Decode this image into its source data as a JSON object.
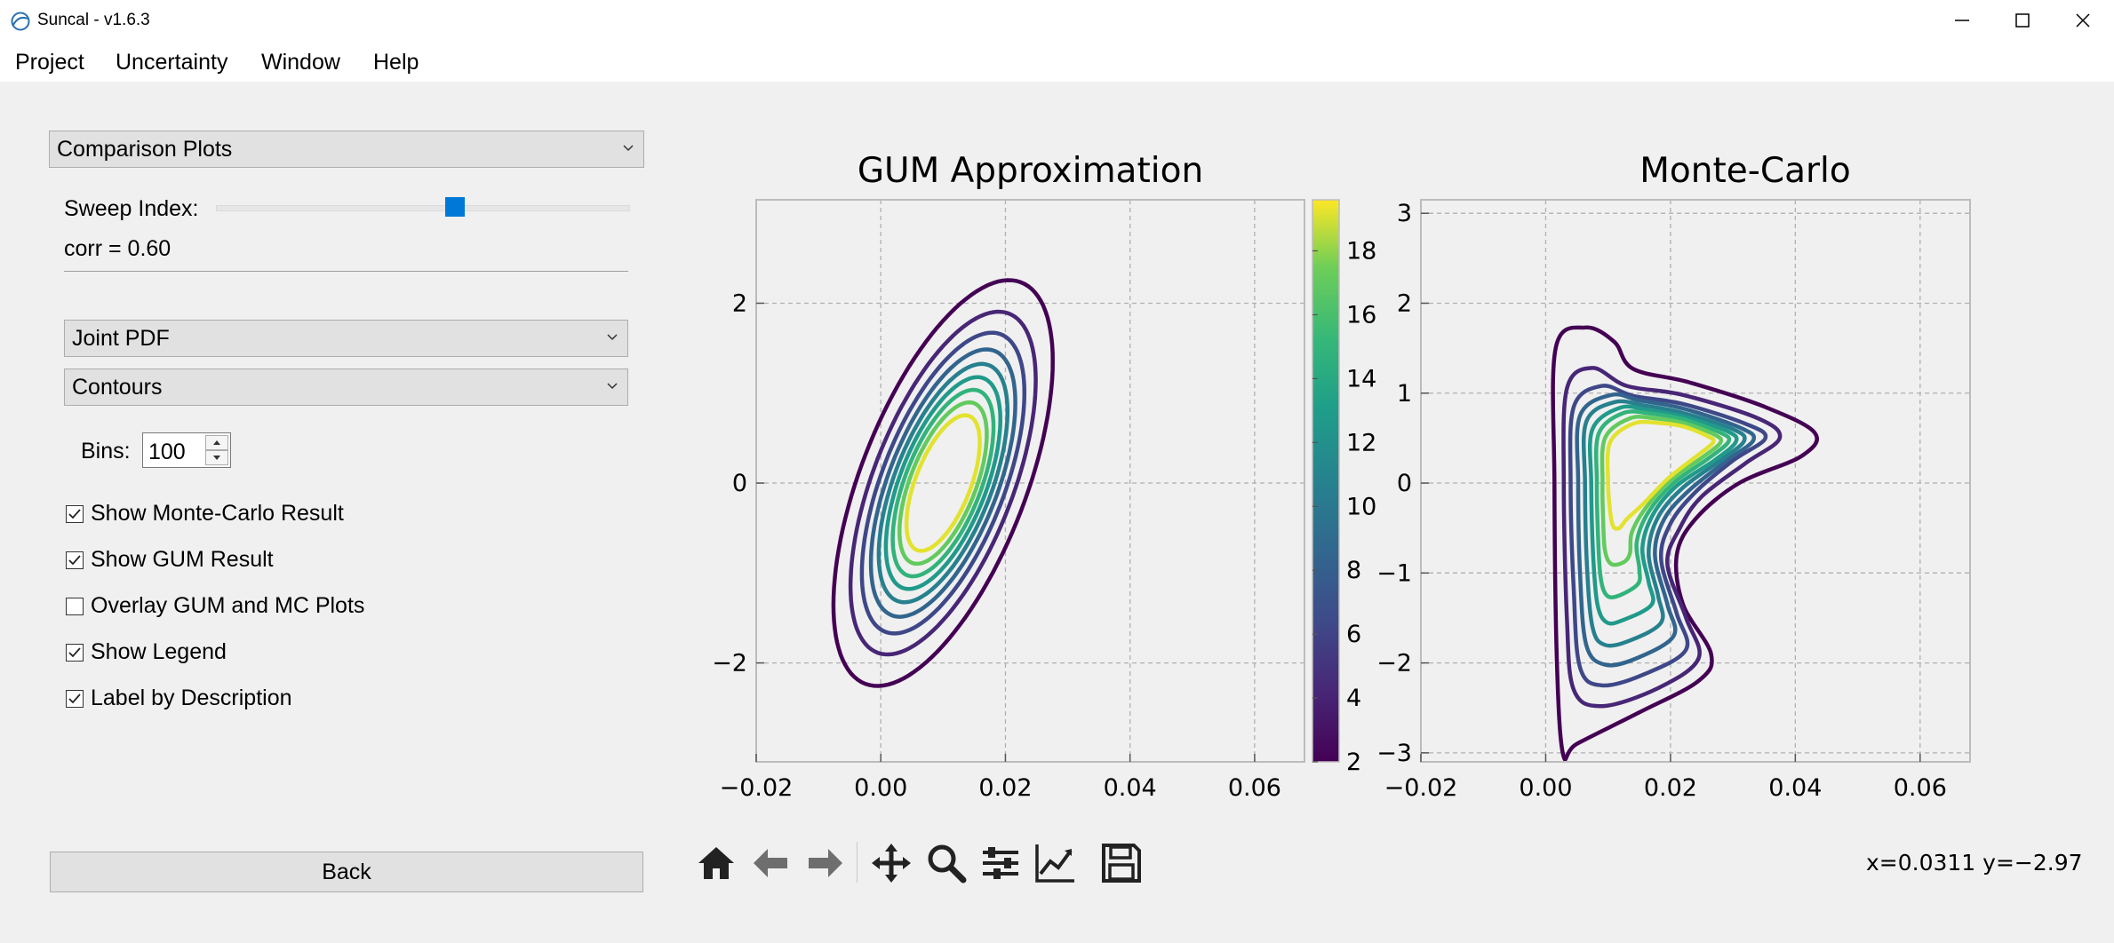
{
  "window": {
    "title": "Suncal - v1.6.3"
  },
  "menu": [
    "Project",
    "Uncertainty",
    "Window",
    "Help"
  ],
  "left_panel": {
    "view_select": "Comparison Plots",
    "sweep_label": "Sweep Index:",
    "sweep_fraction": 0.58,
    "corr_text": "corr = 0.60",
    "plot_type_select": "Joint PDF",
    "style_select": "Contours",
    "bins_label": "Bins:",
    "bins_value": "100",
    "checkboxes": [
      {
        "label": "Show Monte-Carlo Result",
        "checked": true
      },
      {
        "label": "Show GUM Result",
        "checked": true
      },
      {
        "label": "Overlay GUM and MC Plots",
        "checked": false
      },
      {
        "label": "Show Legend",
        "checked": true
      },
      {
        "label": "Label by Description",
        "checked": true
      }
    ],
    "back_label": "Back"
  },
  "chart_data": [
    {
      "type": "contour",
      "title": "GUM Approximation",
      "xlim": [
        -0.02,
        0.068
      ],
      "ylim": [
        -3.1,
        3.15
      ],
      "x_ticks": [
        "−0.02",
        "0.00",
        "0.02",
        "0.04",
        "0.06"
      ],
      "y_ticks": [
        "−2",
        "0",
        "2"
      ],
      "grid": true,
      "ellipse": {
        "center": [
          0.01,
          0.0
        ],
        "sigma_x": 0.0078,
        "sigma_y": 1.0,
        "corr": 0.6
      },
      "levels": [
        2.0,
        4.15,
        6.3,
        8.45,
        10.6,
        12.75,
        14.9,
        17.05,
        19.2
      ],
      "colorbar": {
        "min": 2,
        "max": 19.6,
        "ticks": [
          "2",
          "4",
          "6",
          "8",
          "10",
          "12",
          "14",
          "16",
          "18"
        ]
      }
    },
    {
      "type": "contour",
      "title": "Monte-Carlo",
      "xlim": [
        -0.02,
        0.068
      ],
      "ylim": [
        -3.1,
        3.15
      ],
      "x_ticks": [
        "−0.02",
        "0.00",
        "0.02",
        "0.04",
        "0.06"
      ],
      "y_ticks": [
        "−3",
        "−2",
        "−1",
        "0",
        "1",
        "2",
        "3"
      ],
      "grid": true,
      "contours": [
        {
          "level": 2.0,
          "points": [
            [
              0.0016,
              1.5
            ],
            [
              0.0064,
              1.73
            ],
            [
              0.011,
              1.57
            ],
            [
              0.014,
              1.27
            ],
            [
              0.023,
              1.12
            ],
            [
              0.035,
              0.85
            ],
            [
              0.0431,
              0.56
            ],
            [
              0.041,
              0.3
            ],
            [
              0.031,
              0.0
            ],
            [
              0.024,
              -0.4
            ],
            [
              0.021,
              -0.8
            ],
            [
              0.022,
              -1.35
            ],
            [
              0.0265,
              -1.9
            ],
            [
              0.0245,
              -2.2
            ],
            [
              0.015,
              -2.55
            ],
            [
              0.005,
              -2.9
            ],
            [
              0.0028,
              -3.02
            ],
            [
              0.0018,
              -2.0
            ],
            [
              0.0014,
              0.0
            ]
          ]
        },
        {
          "level": 4.15,
          "points": [
            [
              0.0034,
              1.05
            ],
            [
              0.0075,
              1.28
            ],
            [
              0.013,
              1.08
            ],
            [
              0.022,
              0.98
            ],
            [
              0.034,
              0.72
            ],
            [
              0.0375,
              0.5
            ],
            [
              0.032,
              0.22
            ],
            [
              0.025,
              -0.15
            ],
            [
              0.0215,
              -0.5
            ],
            [
              0.0195,
              -0.9
            ],
            [
              0.0225,
              -1.5
            ],
            [
              0.0245,
              -1.95
            ],
            [
              0.018,
              -2.28
            ],
            [
              0.009,
              -2.48
            ],
            [
              0.0045,
              -2.3
            ],
            [
              0.0034,
              -1.5
            ],
            [
              0.0029,
              0.0
            ]
          ]
        },
        {
          "level": 6.3,
          "points": [
            [
              0.0045,
              0.85
            ],
            [
              0.009,
              1.08
            ],
            [
              0.014,
              0.97
            ],
            [
              0.022,
              0.88
            ],
            [
              0.032,
              0.66
            ],
            [
              0.0352,
              0.5
            ],
            [
              0.03,
              0.25
            ],
            [
              0.024,
              -0.1
            ],
            [
              0.02,
              -0.45
            ],
            [
              0.0185,
              -0.85
            ],
            [
              0.021,
              -1.45
            ],
            [
              0.0225,
              -1.85
            ],
            [
              0.016,
              -2.12
            ],
            [
              0.009,
              -2.25
            ],
            [
              0.0055,
              -2.05
            ],
            [
              0.0045,
              -1.2
            ],
            [
              0.004,
              0.0
            ]
          ]
        },
        {
          "level": 8.45,
          "points": [
            [
              0.0055,
              0.75
            ],
            [
              0.0105,
              0.98
            ],
            [
              0.015,
              0.92
            ],
            [
              0.022,
              0.83
            ],
            [
              0.031,
              0.62
            ],
            [
              0.0333,
              0.48
            ],
            [
              0.029,
              0.25
            ],
            [
              0.023,
              -0.08
            ],
            [
              0.019,
              -0.4
            ],
            [
              0.0175,
              -0.8
            ],
            [
              0.0195,
              -1.35
            ],
            [
              0.0205,
              -1.7
            ],
            [
              0.0145,
              -1.95
            ],
            [
              0.0095,
              -2.02
            ],
            [
              0.0065,
              -1.8
            ],
            [
              0.0055,
              -1.0
            ],
            [
              0.0052,
              0.0
            ]
          ]
        },
        {
          "level": 10.6,
          "points": [
            [
              0.0065,
              0.68
            ],
            [
              0.011,
              0.9
            ],
            [
              0.016,
              0.86
            ],
            [
              0.022,
              0.78
            ],
            [
              0.03,
              0.6
            ],
            [
              0.0318,
              0.47
            ],
            [
              0.028,
              0.25
            ],
            [
              0.022,
              -0.05
            ],
            [
              0.018,
              -0.38
            ],
            [
              0.0165,
              -0.78
            ],
            [
              0.018,
              -1.25
            ],
            [
              0.0185,
              -1.55
            ],
            [
              0.0135,
              -1.75
            ],
            [
              0.0095,
              -1.8
            ],
            [
              0.0075,
              -1.6
            ],
            [
              0.0066,
              -0.9
            ],
            [
              0.0063,
              0.0
            ]
          ]
        },
        {
          "level": 12.75,
          "points": [
            [
              0.0075,
              0.6
            ],
            [
              0.012,
              0.84
            ],
            [
              0.0165,
              0.81
            ],
            [
              0.022,
              0.74
            ],
            [
              0.029,
              0.58
            ],
            [
              0.0305,
              0.46
            ],
            [
              0.027,
              0.25
            ],
            [
              0.021,
              -0.03
            ],
            [
              0.0172,
              -0.35
            ],
            [
              0.0155,
              -0.72
            ],
            [
              0.0165,
              -1.1
            ],
            [
              0.017,
              -1.35
            ],
            [
              0.0125,
              -1.52
            ],
            [
              0.0098,
              -1.55
            ],
            [
              0.0083,
              -1.35
            ],
            [
              0.0076,
              -0.8
            ],
            [
              0.0073,
              0.0
            ]
          ]
        },
        {
          "level": 14.9,
          "points": [
            [
              0.0085,
              0.55
            ],
            [
              0.0125,
              0.78
            ],
            [
              0.017,
              0.77
            ],
            [
              0.022,
              0.71
            ],
            [
              0.028,
              0.56
            ],
            [
              0.0293,
              0.46
            ],
            [
              0.026,
              0.27
            ],
            [
              0.0205,
              0.0
            ],
            [
              0.0165,
              -0.32
            ],
            [
              0.0146,
              -0.65
            ],
            [
              0.015,
              -0.95
            ],
            [
              0.0148,
              -1.12
            ],
            [
              0.0118,
              -1.25
            ],
            [
              0.0098,
              -1.25
            ],
            [
              0.0088,
              -1.05
            ],
            [
              0.0084,
              -0.6
            ],
            [
              0.0082,
              0.0
            ]
          ]
        },
        {
          "level": 17.05,
          "points": [
            [
              0.0095,
              0.5
            ],
            [
              0.0135,
              0.72
            ],
            [
              0.0175,
              0.72
            ],
            [
              0.022,
              0.67
            ],
            [
              0.027,
              0.54
            ],
            [
              0.028,
              0.45
            ],
            [
              0.025,
              0.28
            ],
            [
              0.02,
              0.03
            ],
            [
              0.016,
              -0.28
            ],
            [
              0.0138,
              -0.55
            ],
            [
              0.0135,
              -0.78
            ],
            [
              0.0125,
              -0.88
            ],
            [
              0.0105,
              -0.9
            ],
            [
              0.0095,
              -0.75
            ],
            [
              0.0092,
              -0.4
            ],
            [
              0.0091,
              0.0
            ]
          ]
        },
        {
          "level": 19.2,
          "points": [
            [
              0.0103,
              0.45
            ],
            [
              0.014,
              0.66
            ],
            [
              0.018,
              0.67
            ],
            [
              0.022,
              0.63
            ],
            [
              0.026,
              0.52
            ],
            [
              0.0268,
              0.45
            ],
            [
              0.0242,
              0.3
            ],
            [
              0.0196,
              0.05
            ],
            [
              0.0158,
              -0.22
            ],
            [
              0.013,
              -0.4
            ],
            [
              0.0118,
              -0.5
            ],
            [
              0.0108,
              -0.48
            ],
            [
              0.0103,
              -0.3
            ],
            [
              0.01,
              0.0
            ]
          ]
        }
      ]
    }
  ],
  "toolbar": {
    "icons": [
      "home-icon",
      "back-arrow-icon",
      "forward-arrow-icon",
      "pan-icon",
      "zoom-icon",
      "configure-subplots-icon",
      "edit-axis-icon",
      "save-icon"
    ],
    "coords": "x=0.0311 y=−2.97"
  }
}
